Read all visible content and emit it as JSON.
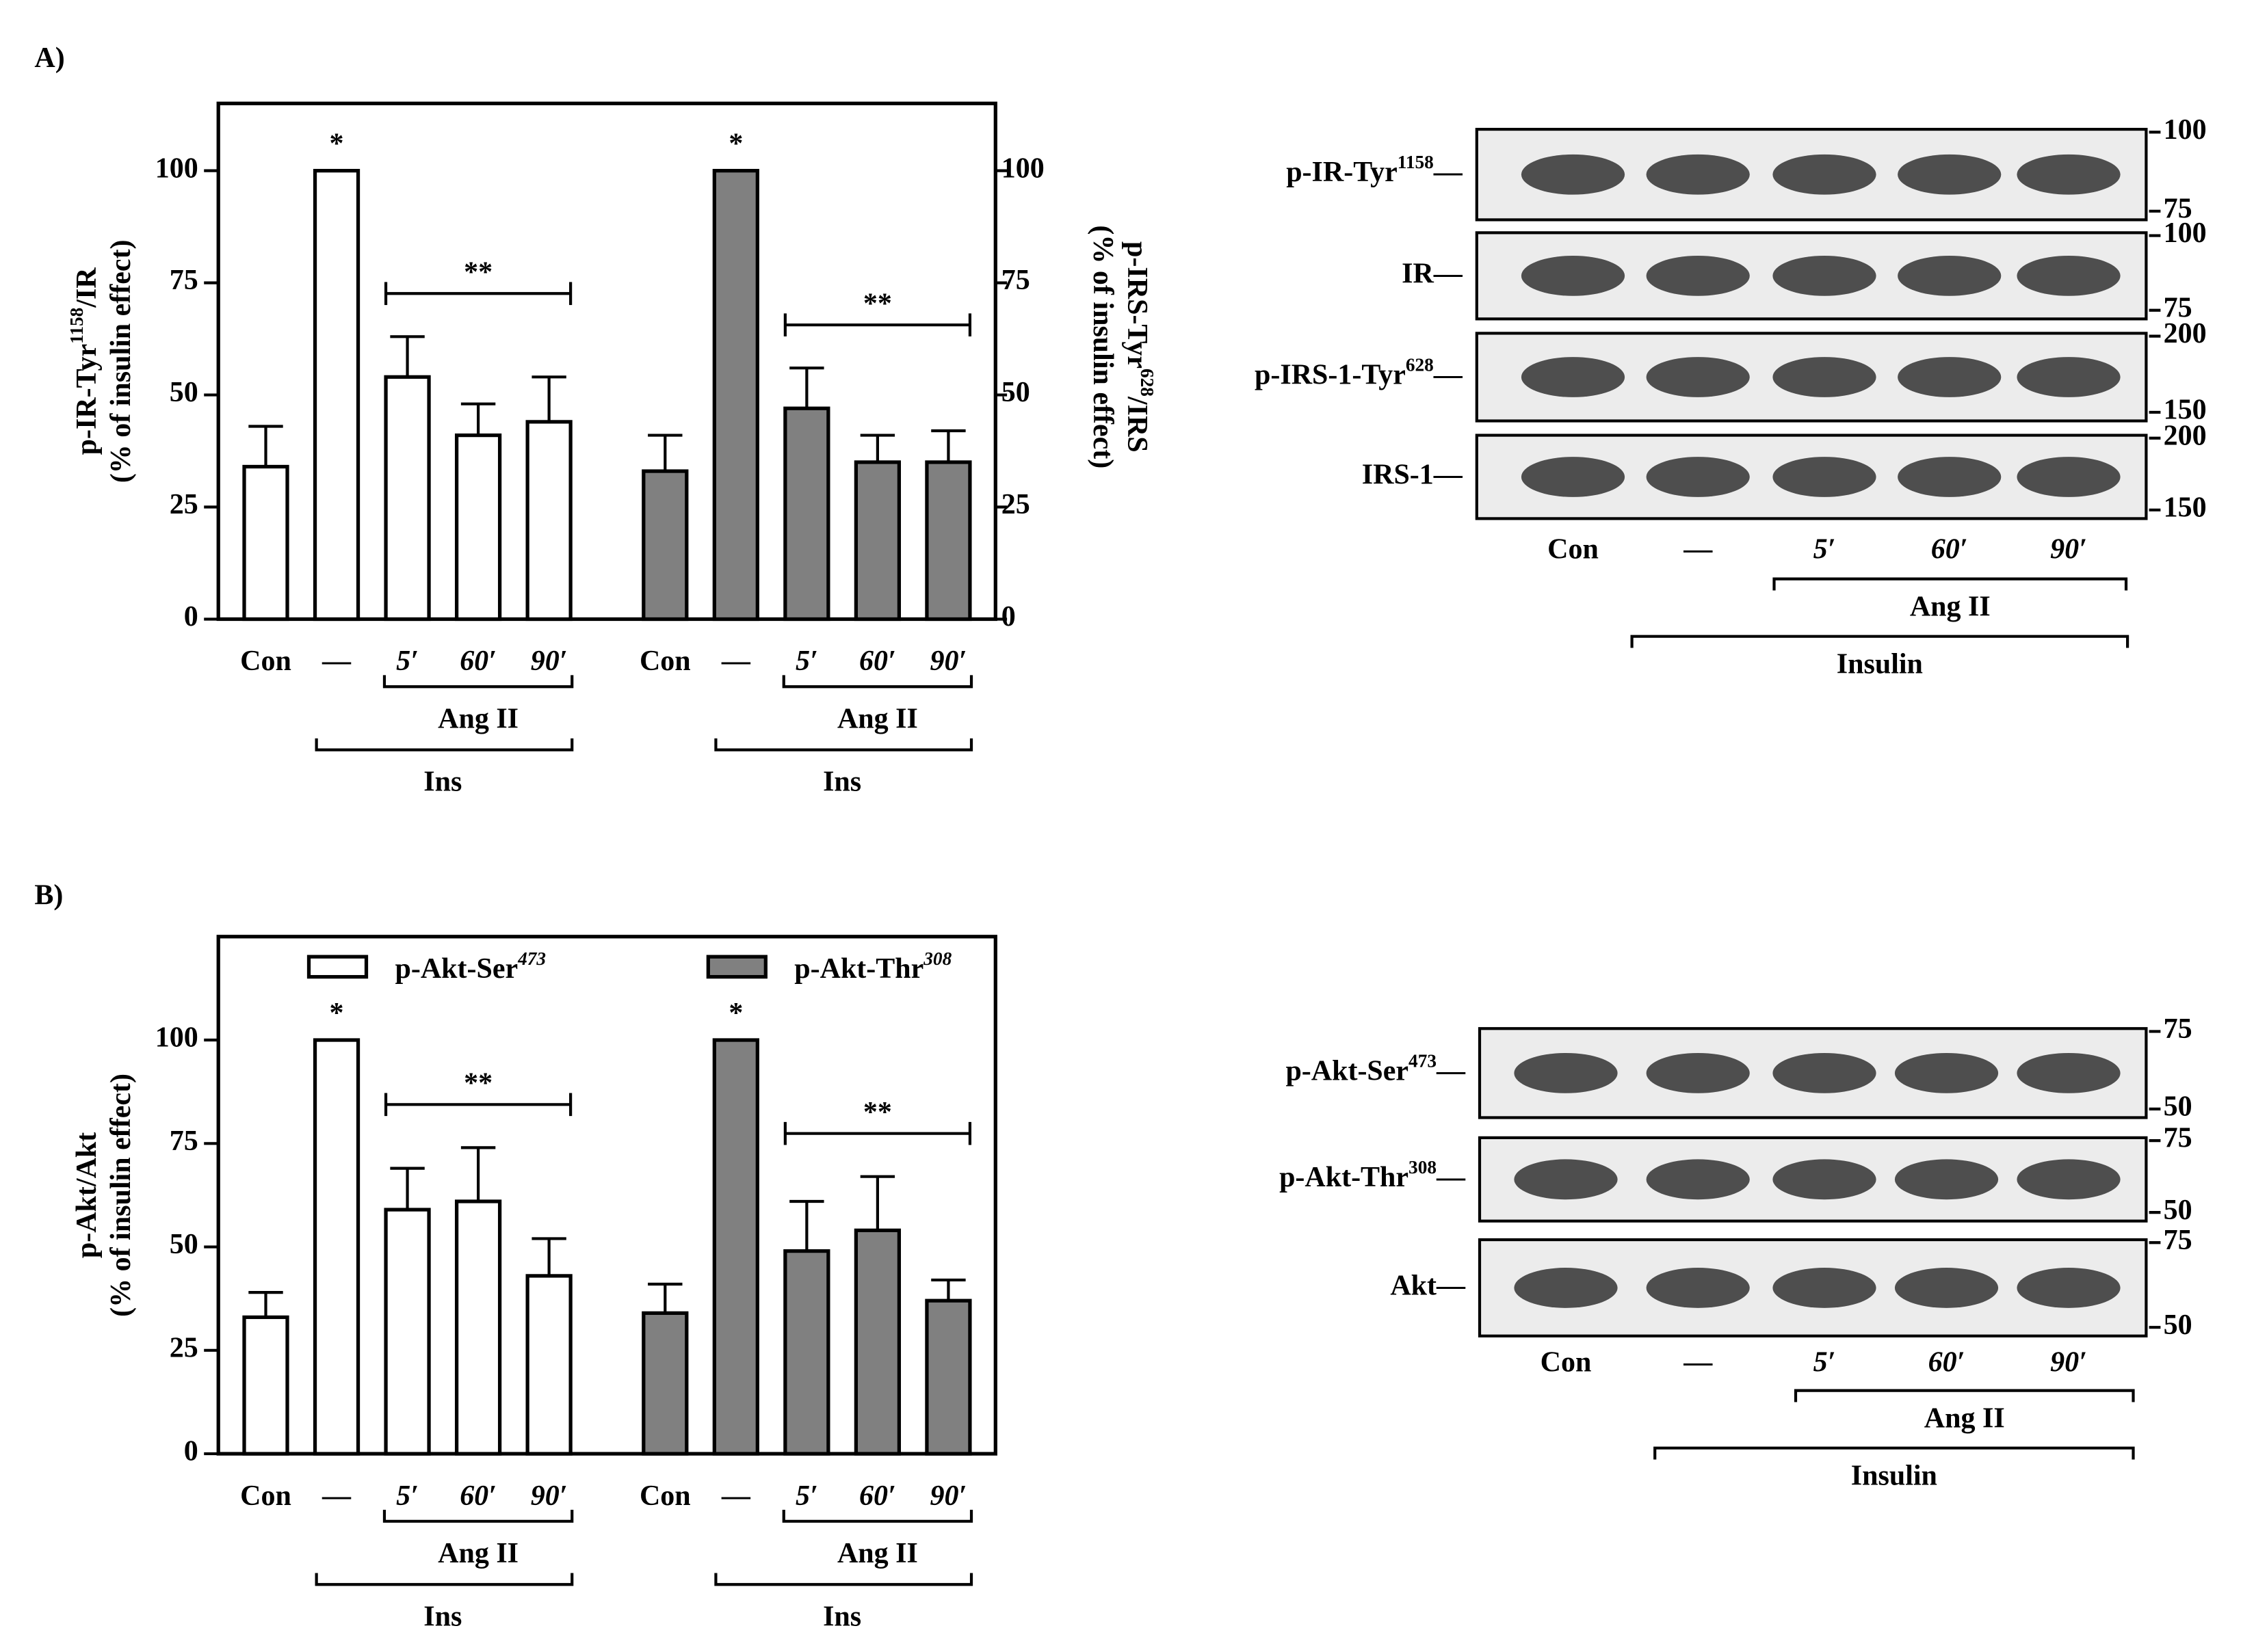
{
  "panels": [
    "A)",
    "B)"
  ],
  "chart_data": [
    {
      "type": "bar",
      "ylabel": {
        "main": "p-IR-Tyr",
        "sup": "1158",
        "tail": "/IR",
        "line2": "(% of insulin effect)"
      },
      "y2label": {
        "main": "p-IRS-Tyr",
        "sup": "628",
        "tail": "/IRS",
        "line2": "(% of insulin effect)"
      },
      "categories": [
        "Con",
        "—",
        "5′",
        "60′",
        "90′",
        "Con",
        "—",
        "5′",
        "60′",
        "90′"
      ],
      "series": [
        {
          "color": "#ffffff",
          "values": [
            34,
            100,
            54,
            41,
            44,
            null,
            null,
            null,
            null,
            null
          ],
          "errors": [
            9,
            null,
            9,
            7,
            10,
            null,
            null,
            null,
            null,
            null
          ]
        },
        {
          "color": "#808080",
          "axis": "y2",
          "values": [
            null,
            null,
            null,
            null,
            null,
            33,
            100,
            47,
            35,
            35
          ],
          "errors": [
            null,
            null,
            null,
            null,
            null,
            8,
            null,
            9,
            6,
            7
          ]
        }
      ],
      "ylim": [
        0,
        115
      ],
      "yticks": [
        0,
        25,
        50,
        75,
        100
      ],
      "y2lim": [
        0,
        115
      ],
      "y2ticks": [
        0,
        25,
        50,
        75,
        100
      ],
      "markers": [
        "*",
        "**",
        "*",
        "**"
      ],
      "brackets": [
        "Ang II",
        "Ins",
        "Ang II",
        "Ins"
      ]
    },
    {
      "type": "bar",
      "ylabel": {
        "main": "p-Akt/Akt",
        "line2": "(% of insulin effect)"
      },
      "categories": [
        "Con",
        "—",
        "5′",
        "60′",
        "90′",
        "Con",
        "—",
        "5′",
        "60′",
        "90′"
      ],
      "series": [
        {
          "name": "p-Akt-Ser",
          "name_sup": "473",
          "color": "#ffffff",
          "values": [
            33,
            100,
            59,
            61,
            43,
            null,
            null,
            null,
            null,
            null
          ],
          "errors": [
            6,
            null,
            10,
            13,
            9,
            null,
            null,
            null,
            null,
            null
          ]
        },
        {
          "name": "p-Akt-Thr",
          "name_sup": "308",
          "color": "#808080",
          "values": [
            null,
            null,
            null,
            null,
            null,
            34,
            100,
            49,
            54,
            37
          ],
          "errors": [
            null,
            null,
            null,
            null,
            null,
            7,
            null,
            12,
            13,
            5
          ]
        }
      ],
      "ylim": [
        0,
        125
      ],
      "yticks": [
        0,
        25,
        50,
        75,
        100
      ],
      "markers": [
        "*",
        "**",
        "*",
        "**"
      ],
      "brackets": [
        "Ang II",
        "Ins",
        "Ang II",
        "Ins"
      ]
    }
  ],
  "blots": [
    {
      "rows": [
        {
          "label": {
            "main": "p-IR-Tyr",
            "sup": "1158",
            "tail": "—"
          },
          "markers": [
            100,
            75
          ]
        },
        {
          "label": {
            "main": "IR",
            "tail": "—"
          },
          "markers": [
            100,
            75
          ]
        },
        {
          "label": {
            "main": "p-IRS-1-Tyr",
            "sup": "628",
            "tail": "—"
          },
          "markers": [
            200,
            150
          ]
        },
        {
          "label": {
            "main": "IRS-1",
            "tail": "—"
          },
          "markers": [
            200,
            150
          ]
        }
      ],
      "lanes": [
        "Con",
        "—",
        "5′",
        "60′",
        "90′"
      ],
      "brackets": [
        "Ang II",
        "Insulin"
      ]
    },
    {
      "rows": [
        {
          "label": {
            "main": "p-Akt-Ser",
            "sup": "473",
            "tail": "—"
          },
          "markers": [
            75,
            50
          ]
        },
        {
          "label": {
            "main": "p-Akt-Thr",
            "sup": "308",
            "tail": "—"
          },
          "markers": [
            75,
            50
          ]
        },
        {
          "label": {
            "main": "Akt",
            "tail": "—"
          },
          "markers": [
            75,
            50
          ]
        }
      ],
      "lanes": [
        "Con",
        "—",
        "5′",
        "60′",
        "90′"
      ],
      "brackets": [
        "Ang II",
        "Insulin"
      ]
    }
  ]
}
